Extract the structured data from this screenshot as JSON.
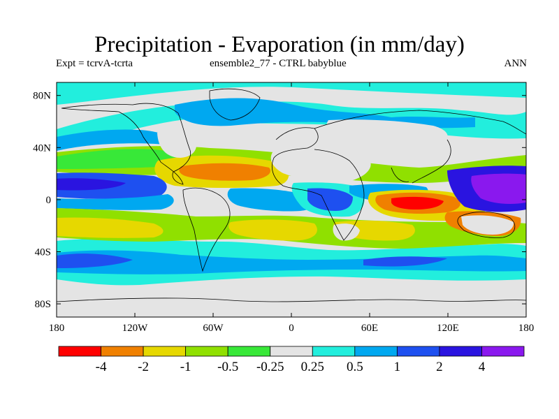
{
  "title": "Precipitation - Evaporation (in mm/day)",
  "subtitle_left": "Expt = tcrvA-tcrta",
  "subtitle_center": "ensemble2_77 - CTRL babyblue",
  "subtitle_right": "ANN",
  "axes": {
    "x_ticks": [
      "180",
      "120W",
      "60W",
      "0",
      "60E",
      "120E",
      "180"
    ],
    "y_ticks": [
      "80N",
      "40N",
      "0",
      "40S",
      "80S"
    ]
  },
  "colorbar": {
    "colors": [
      "#ff0000",
      "#f08000",
      "#e6d800",
      "#90e000",
      "#38e838",
      "#e4e4e4",
      "#22eedd",
      "#00a8f0",
      "#1e50f0",
      "#2a14e0",
      "#8a18ee"
    ],
    "labels": [
      "-4",
      "-2",
      "-1",
      "-0.5",
      "-0.25",
      "0.25",
      "0.5",
      "1",
      "2",
      "4"
    ]
  },
  "colors": {
    "red": "#ff0000",
    "orange": "#f08000",
    "yellow": "#e6d800",
    "lime": "#90e000",
    "green": "#38e838",
    "gray": "#e4e4e4",
    "cyan": "#22eedd",
    "sky": "#00a8f0",
    "blue": "#1e50f0",
    "indigo": "#2a14e0",
    "violet": "#8a18ee"
  }
}
